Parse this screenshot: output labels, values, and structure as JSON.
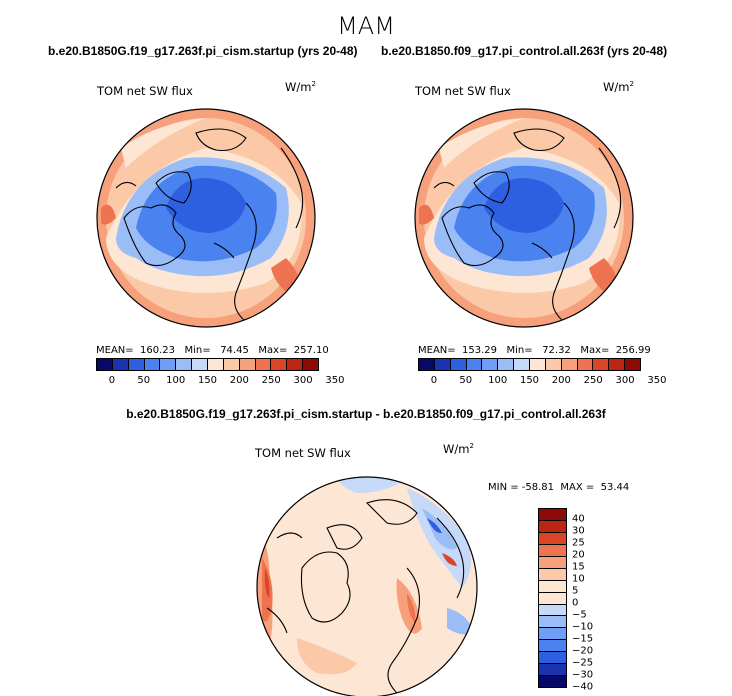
{
  "season": "MAM",
  "panels": [
    {
      "case_title": "b.e20.B1850G.f19_g17.263f.pi_cism.startup (yrs 20-48)",
      "variable": "TOM net SW flux",
      "units_base": "W/m",
      "units_exp": "2",
      "stats": "MEAN=  160.23   Min=   74.45   Max=  257.10"
    },
    {
      "case_title": "b.e20.B1850.f09_g17.pi_control.all.263f (yrs 20-48)",
      "variable": "TOM net SW flux",
      "units_base": "W/m",
      "units_exp": "2",
      "stats": "MEAN=  153.29   Min=   72.32   Max=  256.99"
    }
  ],
  "diff": {
    "title": "b.e20.B1850G.f19_g17.263f.pi_cism.startup - b.e20.B1850.f09_g17.pi_control.all.263f",
    "variable": "TOM net SW flux",
    "units_base": "W/m",
    "units_exp": "2",
    "stats": "MIN = -58.81  MAX =  53.44"
  },
  "colorbar_abs": {
    "colors": [
      "#08086b",
      "#1c33b0",
      "#2d5fe0",
      "#4a82f0",
      "#6f9ff5",
      "#9bbdf7",
      "#c6d9f8",
      "#fde6d3",
      "#fbc8a8",
      "#f7a07c",
      "#ee7350",
      "#dc4426",
      "#be2412",
      "#8e0a06"
    ],
    "tick_labels": [
      "0",
      "50",
      "100",
      "150",
      "200",
      "250",
      "300",
      "350"
    ]
  },
  "colorbar_diff": {
    "colors": [
      "#8e0a06",
      "#be2412",
      "#dc4426",
      "#ee7350",
      "#f7a07c",
      "#fbc8a8",
      "#fde6d3",
      "#fde6d3",
      "#c6d9f8",
      "#9bbdf7",
      "#6f9ff5",
      "#4a82f0",
      "#2d5fe0",
      "#1c33b0",
      "#08086b"
    ],
    "tick_labels": [
      "40",
      "30",
      "25",
      "20",
      "15",
      "10",
      "5",
      "0",
      "−5",
      "−10",
      "−15",
      "−20",
      "−25",
      "−30",
      "−40"
    ]
  }
}
